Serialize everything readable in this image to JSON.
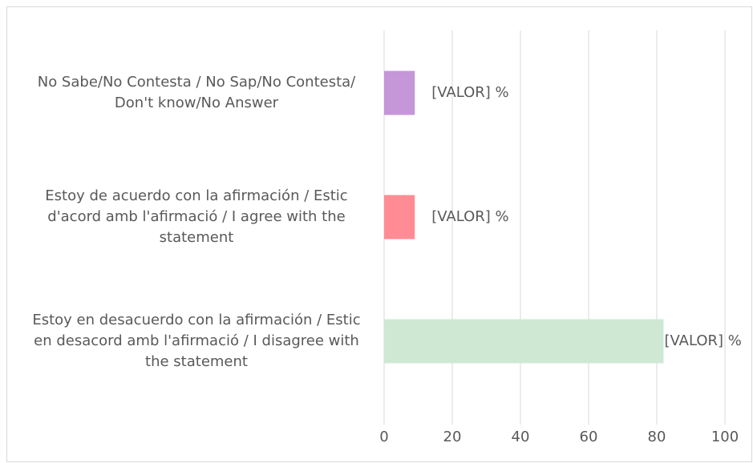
{
  "chart_data": {
    "type": "bar",
    "orientation": "horizontal",
    "categories": [
      "No Sabe/No Contesta / No Sap/No Contesta/ Don't know/No Answer",
      "Estoy de acuerdo con la afirmación / Estic d'acord amb l'afirmació / I agree with the statement",
      "Estoy en desacuerdo con la afirmación / Estic en desacord amb l'afirmació / I disagree with the statement"
    ],
    "values": [
      9,
      9,
      82
    ],
    "value_labels": [
      "[VALOR] %",
      "[VALOR] %",
      "[VALOR] %"
    ],
    "colors": [
      "#c596d8",
      "#ff8c94",
      "#cfe8d4"
    ],
    "xlim": [
      0,
      100
    ],
    "xticks": [
      0,
      20,
      40,
      60,
      80,
      100
    ],
    "grid": true
  }
}
